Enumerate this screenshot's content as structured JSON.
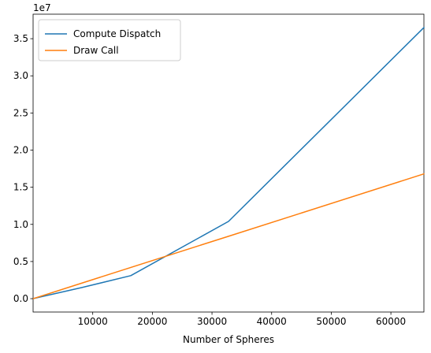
{
  "chart_data": {
    "type": "line",
    "title": "",
    "xlabel": "Number of Spheres",
    "ylabel": "",
    "y_offset_text": "1e7",
    "xlim": [
      0,
      65536
    ],
    "ylim": [
      -1800000,
      38300000
    ],
    "x_ticks": [
      10000,
      20000,
      30000,
      40000,
      50000,
      60000
    ],
    "y_ticks": [
      0,
      5000000,
      10000000,
      15000000,
      20000000,
      25000000,
      30000000,
      35000000
    ],
    "y_tick_labels": [
      "0.0",
      "0.5",
      "1.0",
      "1.5",
      "2.0",
      "2.5",
      "3.0",
      "3.5"
    ],
    "legend_position": "upper-left",
    "grid": false,
    "series": [
      {
        "name": "Compute Dispatch",
        "color": "#1f77b4",
        "x": [
          0,
          8192,
          16384,
          32768,
          65536
        ],
        "y": [
          0,
          1500000,
          3100000,
          10400000,
          36500000
        ]
      },
      {
        "name": "Draw Call",
        "color": "#ff7f0e",
        "x": [
          0,
          8192,
          16384,
          32768,
          65536
        ],
        "y": [
          0,
          2100000,
          4200000,
          8400000,
          16800000
        ]
      }
    ]
  }
}
